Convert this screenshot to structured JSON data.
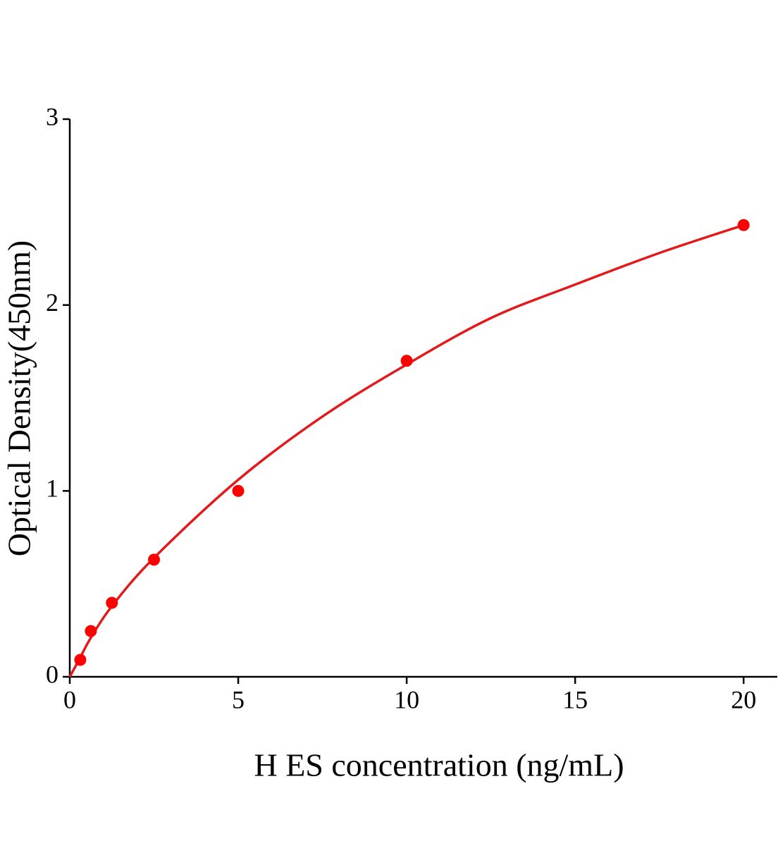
{
  "chart_data": {
    "type": "scatter",
    "x_label": "H ES concentration (ng/mL)",
    "y_label": "Optical Density(450nm)",
    "x": [
      0.3125,
      0.625,
      1.25,
      2.5,
      5,
      10,
      20
    ],
    "values": [
      0.091,
      0.246,
      0.398,
      0.63,
      1.0,
      1.7,
      2.43
    ],
    "color": "#ff0000",
    "fit_x": [
      0,
      0.3,
      0.625,
      1.25,
      2.5,
      5,
      7.5,
      10,
      12.5,
      15,
      17.5,
      20
    ],
    "fit_values": [
      0,
      0.1,
      0.21,
      0.38,
      0.64,
      1.06,
      1.4,
      1.68,
      1.93,
      2.11,
      2.28,
      2.43
    ],
    "fit_color": "#e31a1c",
    "xlim": [
      0,
      21
    ],
    "xticks": [
      0,
      5,
      10,
      15,
      20
    ],
    "ylim": [
      0,
      3
    ],
    "yticks": [
      0,
      1,
      2,
      3
    ]
  }
}
